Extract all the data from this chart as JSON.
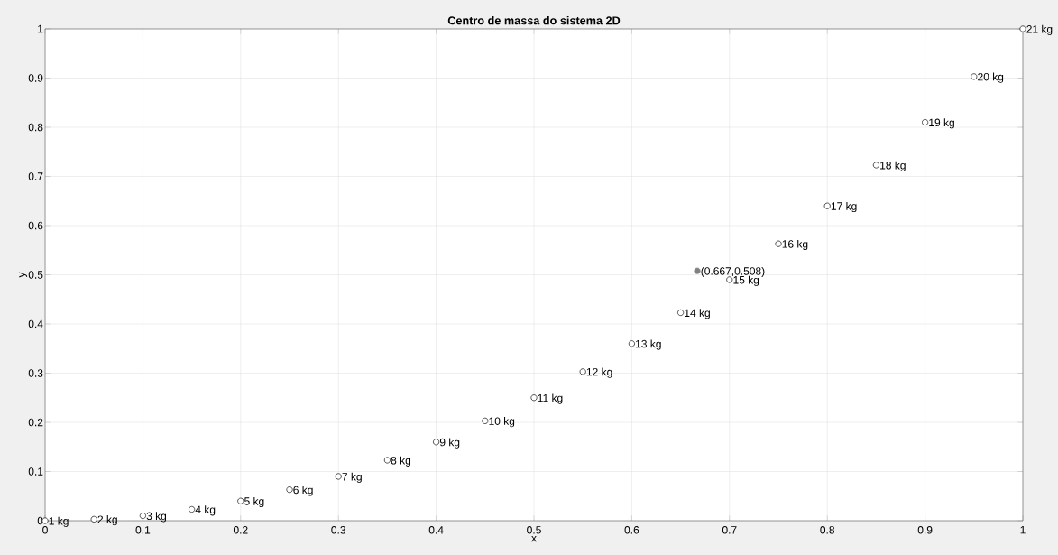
{
  "chart_data": {
    "type": "scatter",
    "title": "Centro de massa do sistema 2D",
    "xlabel": "x",
    "ylabel": "y",
    "x": [
      0,
      0.05,
      0.1,
      0.15,
      0.2,
      0.25,
      0.3,
      0.35,
      0.4,
      0.45,
      0.5,
      0.55,
      0.6,
      0.65,
      0.7,
      0.75,
      0.8,
      0.85,
      0.9,
      0.95,
      1
    ],
    "series": [
      {
        "color": "#000000",
        "values": [
          0,
          0.003,
          0.01,
          0.023,
          0.04,
          0.063,
          0.09,
          0.123,
          0.16,
          0.203,
          0.25,
          0.303,
          0.36,
          0.423,
          0.49,
          0.563,
          0.64,
          0.723,
          0.81,
          0.903,
          1
        ]
      },
      {
        "x": [
          0.667
        ],
        "color": "#808080",
        "values": [
          0.508
        ]
      }
    ],
    "annotations": [
      {
        "text": "1 kg",
        "x": 0,
        "y": 0
      },
      {
        "text": "2 kg",
        "x": 0.05,
        "y": 0.003
      },
      {
        "text": "3 kg",
        "x": 0.1,
        "y": 0.01
      },
      {
        "text": "4 kg",
        "x": 0.15,
        "y": 0.023
      },
      {
        "text": "5 kg",
        "x": 0.2,
        "y": 0.04
      },
      {
        "text": "6 kg",
        "x": 0.25,
        "y": 0.063
      },
      {
        "text": "7 kg",
        "x": 0.3,
        "y": 0.09
      },
      {
        "text": "8 kg",
        "x": 0.35,
        "y": 0.123
      },
      {
        "text": "9 kg",
        "x": 0.4,
        "y": 0.16
      },
      {
        "text": "10 kg",
        "x": 0.45,
        "y": 0.203
      },
      {
        "text": "11 kg",
        "x": 0.5,
        "y": 0.25
      },
      {
        "text": "12 kg",
        "x": 0.55,
        "y": 0.303
      },
      {
        "text": "13 kg",
        "x": 0.6,
        "y": 0.36
      },
      {
        "text": "14 kg",
        "x": 0.65,
        "y": 0.423
      },
      {
        "text": "15 kg",
        "x": 0.7,
        "y": 0.49
      },
      {
        "text": "16 kg",
        "x": 0.75,
        "y": 0.563
      },
      {
        "text": "17 kg",
        "x": 0.8,
        "y": 0.64
      },
      {
        "text": "18 kg",
        "x": 0.85,
        "y": 0.723
      },
      {
        "text": "19 kg",
        "x": 0.9,
        "y": 0.81
      },
      {
        "text": "20 kg",
        "x": 0.95,
        "y": 0.903
      },
      {
        "text": "21 kg",
        "x": 1,
        "y": 1
      },
      {
        "text": "(0.667,0.508)",
        "x": 0.667,
        "y": 0.508
      }
    ],
    "xlim": [
      0,
      1
    ],
    "ylim": [
      0,
      1
    ],
    "xticks": [
      0,
      0.1,
      0.2,
      0.3,
      0.4,
      0.5,
      0.6,
      0.7,
      0.8,
      0.9,
      1
    ],
    "yticks": [
      0,
      0.1,
      0.2,
      0.3,
      0.4,
      0.5,
      0.6,
      0.7,
      0.8,
      0.9,
      1
    ],
    "grid": true,
    "marker": "circle"
  }
}
